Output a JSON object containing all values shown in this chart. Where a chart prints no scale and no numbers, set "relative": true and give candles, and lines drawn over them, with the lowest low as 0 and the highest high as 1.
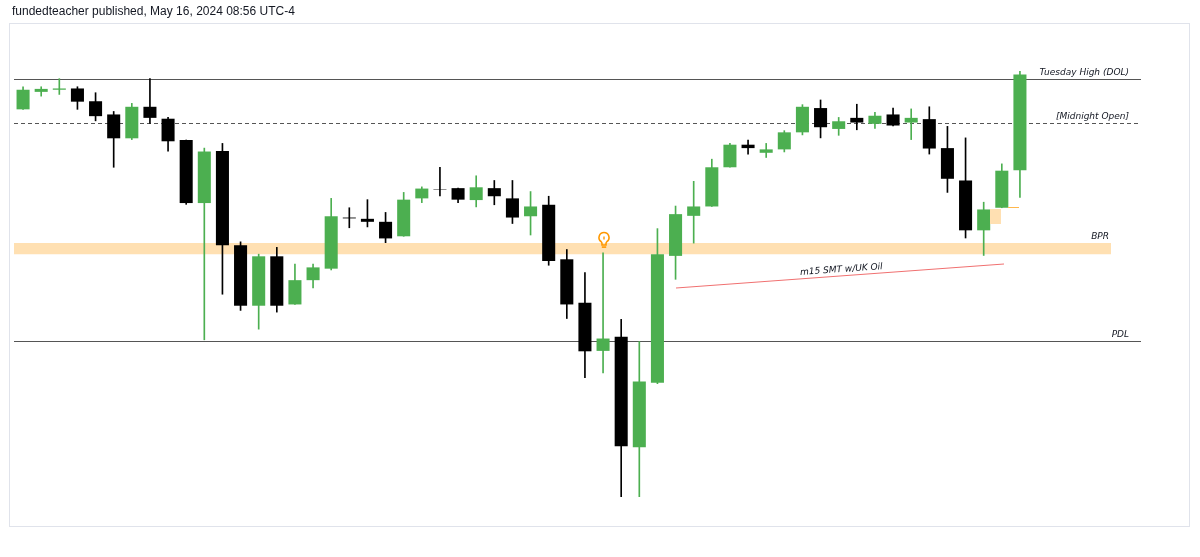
{
  "chart_data": {
    "type": "candlestick",
    "title": "fundedteacher published, May 16, 2024 08:56 UTC-4",
    "relative": true,
    "categories": [
      null,
      null,
      null,
      null,
      null,
      null,
      null,
      null,
      null,
      null,
      null,
      null,
      null,
      null,
      null,
      null,
      null,
      null,
      null,
      null,
      null,
      null,
      null,
      null,
      null,
      null,
      null,
      null,
      null,
      null,
      null,
      null,
      null,
      null,
      null,
      null,
      null,
      null,
      null,
      null,
      null,
      null,
      null,
      null,
      null,
      null,
      null,
      null,
      null,
      null,
      null,
      null,
      null,
      null,
      null,
      null
    ],
    "ohlc": [
      [
        0.91,
        0.963,
        0.91,
        0.956
      ],
      [
        0.951,
        0.963,
        0.941,
        0.958
      ],
      [
        0.956,
        0.982,
        0.945,
        0.959
      ],
      [
        0.959,
        0.963,
        0.91,
        0.928
      ],
      [
        0.929,
        0.949,
        0.883,
        0.894
      ],
      [
        0.898,
        0.905,
        0.774,
        0.842
      ],
      [
        0.842,
        0.924,
        0.839,
        0.916
      ],
      [
        0.916,
        0.982,
        0.877,
        0.89
      ],
      [
        0.888,
        0.891,
        0.812,
        0.835
      ],
      [
        0.838,
        0.838,
        0.687,
        0.69
      ],
      [
        0.69,
        0.819,
        0.369,
        0.811
      ],
      [
        0.812,
        0.83,
        0.476,
        0.591
      ],
      [
        0.591,
        0.599,
        0.438,
        0.449
      ],
      [
        0.449,
        0.57,
        0.394,
        0.565
      ],
      [
        0.565,
        0.586,
        0.434,
        0.449
      ],
      [
        0.452,
        0.547,
        0.452,
        0.509
      ],
      [
        0.509,
        0.547,
        0.491,
        0.539
      ],
      [
        0.536,
        0.701,
        0.533,
        0.659
      ],
      [
        0.656,
        0.679,
        0.632,
        0.654
      ],
      [
        0.653,
        0.698,
        0.634,
        0.646
      ],
      [
        0.646,
        0.668,
        0.597,
        0.607
      ],
      [
        0.612,
        0.715,
        0.612,
        0.698
      ],
      [
        0.701,
        0.728,
        0.691,
        0.724
      ],
      [
        0.723,
        0.774,
        0.707,
        0.722
      ],
      [
        0.725,
        0.725,
        0.691,
        0.698
      ],
      [
        0.697,
        0.754,
        0.681,
        0.727
      ],
      [
        0.725,
        0.743,
        0.686,
        0.706
      ],
      [
        0.701,
        0.743,
        0.642,
        0.656
      ],
      [
        0.659,
        0.717,
        0.615,
        0.682
      ],
      [
        0.686,
        0.706,
        0.544,
        0.554
      ],
      [
        0.558,
        0.581,
        0.419,
        0.452
      ],
      [
        0.456,
        0.527,
        0.28,
        0.342
      ],
      [
        0.343,
        0.573,
        0.291,
        0.372
      ],
      [
        0.376,
        0.417,
        0,
        0.119
      ],
      [
        0.117,
        0.365,
        0,
        0.271
      ],
      [
        0.268,
        0.63,
        0.266,
        0.57
      ],
      [
        0.566,
        0.683,
        0.511,
        0.664
      ],
      [
        0.66,
        0.741,
        0.596,
        0.682
      ],
      [
        0.682,
        0.793,
        0.682,
        0.774
      ],
      [
        0.774,
        0.83,
        0.774,
        0.827
      ],
      [
        0.827,
        0.838,
        0.805,
        0.819
      ],
      [
        0.808,
        0.83,
        0.797,
        0.816
      ],
      [
        0.816,
        0.86,
        0.81,
        0.856
      ],
      [
        0.856,
        0.921,
        0.85,
        0.916
      ],
      [
        0.913,
        0.932,
        0.843,
        0.868
      ],
      [
        0.864,
        0.891,
        0.849,
        0.882
      ],
      [
        0.89,
        0.922,
        0.862,
        0.879
      ],
      [
        0.876,
        0.903,
        0.865,
        0.895
      ],
      [
        0.898,
        0.913,
        0.871,
        0.872
      ],
      [
        0.879,
        0.911,
        0.839,
        0.89
      ],
      [
        0.887,
        0.916,
        0.805,
        0.818
      ],
      [
        0.819,
        0.87,
        0.715,
        0.747
      ],
      [
        0.743,
        0.843,
        0.608,
        0.626
      ],
      [
        0.626,
        0.692,
        0.567,
        0.675
      ],
      [
        0.679,
        0.782,
        0.679,
        0.766
      ],
      [
        0.767,
        1,
        0.703,
        0.992
      ]
    ],
    "colors": [
      "#4caf50",
      "#4caf50",
      "#4caf50",
      "#000000",
      "#000000",
      "#000000",
      "#4caf50",
      "#000000",
      "#000000",
      "#000000",
      "#4caf50",
      "#000000",
      "#000000",
      "#4caf50",
      "#000000",
      "#4caf50",
      "#4caf50",
      "#4caf50",
      "#000000",
      "#000000",
      "#000000",
      "#4caf50",
      "#4caf50",
      "#000000",
      "#000000",
      "#4caf50",
      "#000000",
      "#000000",
      "#4caf50",
      "#000000",
      "#000000",
      "#000000",
      "#4caf50",
      "#000000",
      "#4caf50",
      "#4caf50",
      "#4caf50",
      "#4caf50",
      "#4caf50",
      "#4caf50",
      "#000000",
      "#4caf50",
      "#4caf50",
      "#4caf50",
      "#000000",
      "#4caf50",
      "#000000",
      "#4caf50",
      "#000000",
      "#4caf50",
      "#000000",
      "#000000",
      "#000000",
      "#4caf50",
      "#4caf50",
      "#4caf50"
    ],
    "ref_lines": [
      {
        "axis": "y",
        "value": 0.982,
        "label": "Tuesday High (DOL)",
        "color": "#555555"
      },
      {
        "axis": "y",
        "value": 0.877,
        "label": "[Midnight Open]",
        "color": "#555555",
        "line_style": "dashed"
      },
      {
        "axis": "y",
        "value": 0.367,
        "label": "PDL",
        "color": "#555555"
      }
    ],
    "bands": [
      {
        "axis": "y",
        "from": 0.57,
        "to": 0.596,
        "label": "BPR",
        "color": "#ffe0b2"
      }
    ],
    "annotations": [
      "m15 SMT w/UK Oil"
    ]
  }
}
